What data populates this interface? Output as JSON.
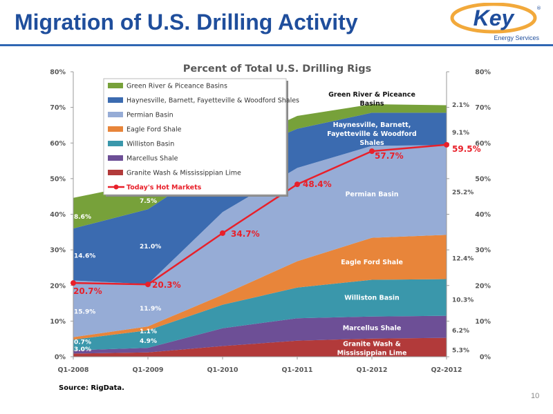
{
  "header": {
    "title": "Migration of U.S. Drilling Activity",
    "logo_text": "Key",
    "logo_subtext": "Energy Services",
    "logo_mark": "®"
  },
  "footer": {
    "source": "Source: RigData.",
    "page_number": "10"
  },
  "colors": {
    "green_river": "#77a13a",
    "haynesville": "#3b6bb0",
    "permian": "#96acd6",
    "eagle_ford": "#e8853a",
    "williston": "#3a97ab",
    "marcellus": "#6d4f96",
    "granite": "#b23a3a",
    "hot_markets": "#e8202a",
    "title_blue": "#1f4e9c"
  },
  "chart_data": {
    "type": "area",
    "stacked": true,
    "title": "Percent of Total U.S. Drilling Rigs",
    "categories": [
      "Q1-2008",
      "Q1-2009",
      "Q1-2010",
      "Q1-2011",
      "Q1-2012",
      "Q2-2012"
    ],
    "ylim": [
      0,
      80
    ],
    "yticks": [
      "0%",
      "10%",
      "20%",
      "30%",
      "40%",
      "50%",
      "60%",
      "70%",
      "80%"
    ],
    "series": [
      {
        "name": "Granite Wash & Mississippian Lime",
        "color": "#b23a3a",
        "values": [
          0.9,
          1.2,
          3.0,
          4.5,
          5.1,
          5.3
        ]
      },
      {
        "name": "Marcellus Shale",
        "color": "#6d4f96",
        "values": [
          0.9,
          1.3,
          5.0,
          6.3,
          6.2,
          6.2
        ]
      },
      {
        "name": "Williston Basin",
        "color": "#3a97ab",
        "values": [
          3.0,
          4.9,
          6.6,
          8.6,
          10.3,
          10.3
        ]
      },
      {
        "name": "Eagle Ford Shale",
        "color": "#e8853a",
        "values": [
          0.7,
          1.1,
          2.8,
          7.4,
          11.8,
          12.4
        ]
      },
      {
        "name": "Permian Basin",
        "color": "#96acd6",
        "values": [
          15.9,
          11.9,
          23.2,
          26.2,
          25.8,
          25.2
        ]
      },
      {
        "name": "Haynesville, Barnett, Fayetteville & Woodford Shales",
        "color": "#3b6bb0",
        "values": [
          14.6,
          21.0,
          14.6,
          11.0,
          9.3,
          9.1
        ]
      },
      {
        "name": "Green River & Piceance Basins",
        "color": "#77a13a",
        "values": [
          8.6,
          7.5,
          2.8,
          3.6,
          2.4,
          2.1
        ]
      }
    ],
    "line_series": {
      "name": "Today's Hot Markets",
      "color": "#e8202a",
      "values": [
        20.7,
        20.3,
        34.7,
        48.4,
        57.7,
        59.5
      ],
      "labels": [
        "20.7%",
        "20.3%",
        "34.7%",
        "48.4%",
        "57.7%",
        "59.5%"
      ]
    },
    "data_labels": [
      {
        "text": "8.6%",
        "x": "Q1-2008",
        "y": 39.3
      },
      {
        "text": "14.6%",
        "x": "Q1-2008",
        "y": 28.4
      },
      {
        "text": "15.9%",
        "x": "Q1-2008",
        "y": 12.7
      },
      {
        "text": "0.7%",
        "x": "Q1-2008",
        "y": 4.2
      },
      {
        "text": "3.0%",
        "x": "Q1-2008",
        "y": 2.1
      },
      {
        "text": "7.5%",
        "x": "Q1-2009",
        "y": 43.8
      },
      {
        "text": "21.0%",
        "x": "Q1-2009",
        "y": 31.0
      },
      {
        "text": "11.9%",
        "x": "Q1-2009",
        "y": 13.6
      },
      {
        "text": "1.1%",
        "x": "Q1-2009",
        "y": 7.2
      },
      {
        "text": "4.9%",
        "x": "Q1-2009",
        "y": 4.5
      },
      {
        "text": "2.1%",
        "x": "Q2-2012",
        "y": 70.7
      },
      {
        "text": "9.1%",
        "x": "Q2-2012",
        "y": 63.0
      },
      {
        "text": "25.2%",
        "x": "Q2-2012",
        "y": 46.2
      },
      {
        "text": "12.4%",
        "x": "Q2-2012",
        "y": 27.6
      },
      {
        "text": "10.3%",
        "x": "Q2-2012",
        "y": 16.0
      },
      {
        "text": "6.2%",
        "x": "Q2-2012",
        "y": 7.4
      },
      {
        "text": "5.3%",
        "x": "Q2-2012",
        "y": 1.8
      }
    ],
    "area_labels": [
      {
        "lines": [
          "Green River & Piceance",
          "Basins"
        ],
        "x": "Q1-2012",
        "y": 73.0
      },
      {
        "lines": [
          "Haynesville, Barnett,",
          "Fayetteville & Woodford",
          "Shales"
        ],
        "x": "Q1-2012",
        "y": 64.5
      },
      {
        "lines": [
          "Permian Basin"
        ],
        "x": "Q1-2012",
        "y": 45.0
      },
      {
        "lines": [
          "Eagle Ford Shale"
        ],
        "x": "Q1-2012",
        "y": 26.0
      },
      {
        "lines": [
          "Williston Basin"
        ],
        "x": "Q1-2012",
        "y": 16.0
      },
      {
        "lines": [
          "Marcellus Shale"
        ],
        "x": "Q1-2012",
        "y": 7.5
      },
      {
        "lines": [
          "Granite Wash &",
          "Mississippian Lime"
        ],
        "x": "Q1-2012",
        "y": 3.0
      }
    ],
    "legend": {
      "placement": "top-left",
      "entries": [
        "Green River & Piceance Basins",
        "Haynesville, Barnett, Fayetteville & Woodford Shales",
        "Permian Basin",
        "Eagle Ford Shale",
        "Williston Basin",
        "Marcellus Shale",
        "Granite Wash & Mississippian Lime",
        "Today's Hot Markets"
      ]
    },
    "grid": false
  }
}
